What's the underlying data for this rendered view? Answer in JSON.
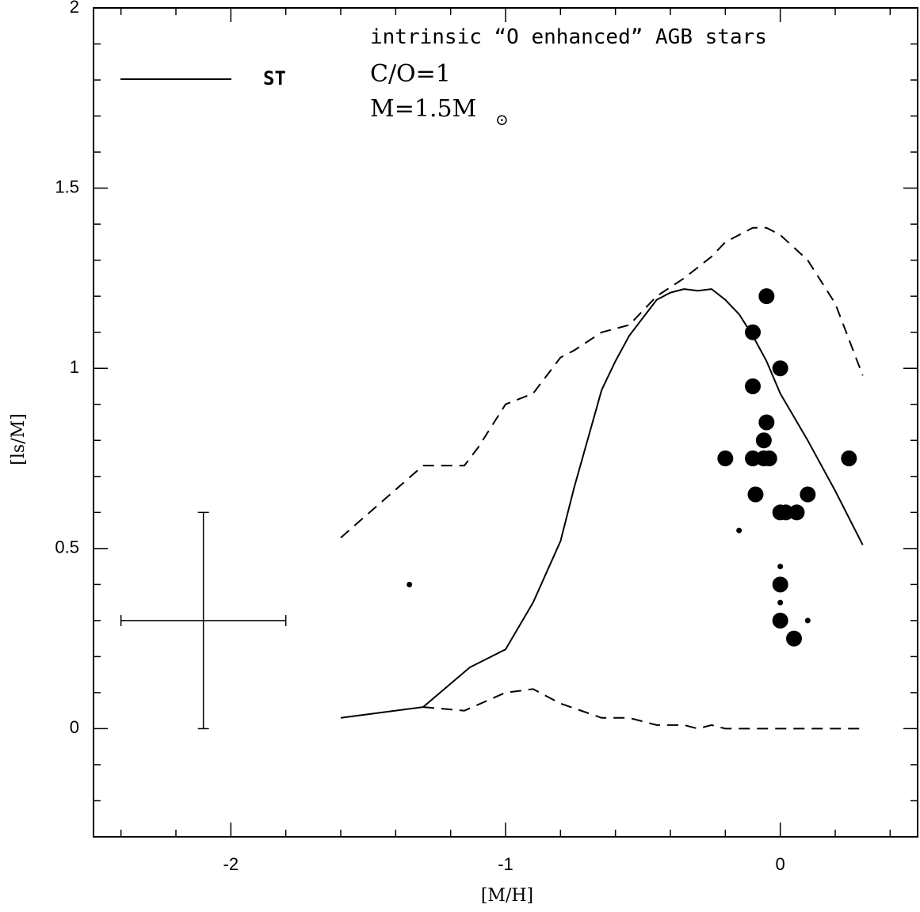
{
  "chart_data": {
    "type": "scatter",
    "title": "",
    "xlabel": "[M/H]",
    "ylabel": "[ls/M]",
    "xlim": [
      -2.5,
      0.5
    ],
    "ylim": [
      -0.3,
      2.0
    ],
    "grid": false,
    "x_ticks": [
      {
        "value": -2,
        "label": "-2"
      },
      {
        "value": -1,
        "label": "-1"
      },
      {
        "value": 0,
        "label": "0"
      }
    ],
    "y_ticks": [
      {
        "value": 0,
        "label": "0"
      },
      {
        "value": 0.5,
        "label": "0.5"
      },
      {
        "value": 1,
        "label": "1"
      },
      {
        "value": 1.5,
        "label": "1.5"
      },
      {
        "value": 2,
        "label": "2"
      }
    ],
    "x_minor_step": 0.2,
    "y_minor_step": 0.1,
    "annotations": {
      "line1": "intrinsic “O enhanced” AGB stars",
      "line2": "C/O=1",
      "line3_main": "M=1.5M",
      "line3_sub": "⊙"
    },
    "legend": {
      "position": "top-left",
      "entries": [
        {
          "label": "ST",
          "style": "solid"
        }
      ]
    },
    "series": [
      {
        "name": "ST",
        "kind": "line",
        "style": "solid",
        "points": [
          [
            -1.6,
            0.03
          ],
          [
            -1.3,
            0.06
          ],
          [
            -1.13,
            0.17
          ],
          [
            -1.0,
            0.22
          ],
          [
            -0.9,
            0.35
          ],
          [
            -0.8,
            0.52
          ],
          [
            -0.75,
            0.67
          ],
          [
            -0.65,
            0.94
          ],
          [
            -0.6,
            1.02
          ],
          [
            -0.55,
            1.09
          ],
          [
            -0.5,
            1.14
          ],
          [
            -0.45,
            1.19
          ],
          [
            -0.4,
            1.21
          ],
          [
            -0.35,
            1.22
          ],
          [
            -0.3,
            1.215
          ],
          [
            -0.25,
            1.22
          ],
          [
            -0.2,
            1.19
          ],
          [
            -0.15,
            1.15
          ],
          [
            -0.1,
            1.09
          ],
          [
            -0.05,
            1.02
          ],
          [
            0.0,
            0.93
          ],
          [
            0.1,
            0.8
          ],
          [
            0.2,
            0.66
          ],
          [
            0.3,
            0.51
          ]
        ]
      },
      {
        "kind": "line",
        "style": "dashed",
        "points": [
          [
            -1.6,
            0.53
          ],
          [
            -1.45,
            0.63
          ],
          [
            -1.3,
            0.73
          ],
          [
            -1.15,
            0.73
          ],
          [
            -1.1,
            0.78
          ],
          [
            -1.0,
            0.9
          ],
          [
            -0.9,
            0.93
          ],
          [
            -0.8,
            1.03
          ],
          [
            -0.75,
            1.05
          ],
          [
            -0.65,
            1.1
          ],
          [
            -0.55,
            1.12
          ],
          [
            -0.45,
            1.2
          ],
          [
            -0.35,
            1.25
          ],
          [
            -0.25,
            1.31
          ],
          [
            -0.2,
            1.35
          ],
          [
            -0.15,
            1.37
          ],
          [
            -0.1,
            1.39
          ],
          [
            -0.05,
            1.39
          ],
          [
            0.0,
            1.37
          ],
          [
            0.1,
            1.3
          ],
          [
            0.2,
            1.18
          ],
          [
            0.3,
            0.98
          ]
        ]
      },
      {
        "kind": "line",
        "style": "dashed",
        "points": [
          [
            -1.3,
            0.06
          ],
          [
            -1.15,
            0.05
          ],
          [
            -1.0,
            0.1
          ],
          [
            -0.9,
            0.11
          ],
          [
            -0.8,
            0.07
          ],
          [
            -0.65,
            0.03
          ],
          [
            -0.55,
            0.03
          ],
          [
            -0.45,
            0.01
          ],
          [
            -0.35,
            0.01
          ],
          [
            -0.3,
            0.0
          ],
          [
            -0.25,
            0.01
          ],
          [
            -0.2,
            0.0
          ],
          [
            0.3,
            0.0
          ]
        ]
      },
      {
        "kind": "points",
        "marker": "large",
        "points": [
          [
            -0.05,
            1.2
          ],
          [
            -0.1,
            1.1
          ],
          [
            0.0,
            1.0
          ],
          [
            -0.1,
            0.95
          ],
          [
            -0.05,
            0.85
          ],
          [
            -0.06,
            0.8
          ],
          [
            -0.2,
            0.75
          ],
          [
            -0.1,
            0.75
          ],
          [
            -0.06,
            0.75
          ],
          [
            -0.04,
            0.75
          ],
          [
            0.25,
            0.75
          ],
          [
            -0.09,
            0.65
          ],
          [
            0.1,
            0.65
          ],
          [
            0.0,
            0.6
          ],
          [
            0.02,
            0.6
          ],
          [
            0.06,
            0.6
          ],
          [
            0.0,
            0.4
          ],
          [
            0.0,
            0.3
          ],
          [
            0.05,
            0.25
          ]
        ]
      },
      {
        "kind": "points",
        "marker": "small",
        "points": [
          [
            -1.35,
            0.4
          ],
          [
            -0.15,
            0.55
          ],
          [
            0.0,
            0.45
          ],
          [
            0.0,
            0.35
          ],
          [
            0.1,
            0.3
          ]
        ]
      }
    ],
    "error_bar": {
      "x": -2.1,
      "y": 0.3,
      "x_err": 0.3,
      "y_err": 0.3
    }
  }
}
